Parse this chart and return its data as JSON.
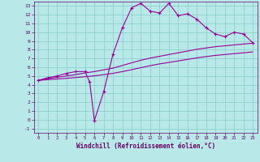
{
  "xlabel": "Windchill (Refroidissement éolien,°C)",
  "line_color": "#990099",
  "bg_color": "#b8e8e8",
  "grid_color": "#88cccc",
  "xlim": [
    -0.5,
    23.5
  ],
  "ylim": [
    -1.5,
    13.5
  ],
  "xticks": [
    0,
    1,
    2,
    3,
    4,
    5,
    6,
    7,
    8,
    9,
    10,
    11,
    12,
    13,
    14,
    15,
    16,
    17,
    18,
    19,
    20,
    21,
    22,
    23
  ],
  "yticks": [
    -1,
    0,
    1,
    2,
    3,
    4,
    5,
    6,
    7,
    8,
    9,
    10,
    11,
    12,
    13
  ],
  "temp_x": [
    0,
    1,
    2,
    3,
    4,
    5,
    5.5,
    6,
    7,
    8,
    9,
    10,
    11,
    12,
    13,
    14,
    15,
    16,
    17,
    18,
    19,
    20,
    21,
    22,
    23
  ],
  "temp_y": [
    4.5,
    4.8,
    5.0,
    5.3,
    5.5,
    5.5,
    4.3,
    -0.1,
    3.2,
    7.5,
    10.5,
    12.8,
    13.3,
    12.4,
    12.2,
    13.3,
    11.9,
    12.1,
    11.5,
    10.5,
    9.8,
    9.5,
    10.0,
    9.8,
    8.8
  ],
  "smooth1_x": [
    0,
    1,
    2,
    3,
    4,
    5,
    6,
    7,
    8,
    9,
    10,
    11,
    12,
    13,
    14,
    15,
    16,
    17,
    18,
    19,
    20,
    21,
    22,
    23
  ],
  "smooth1_y": [
    4.5,
    4.7,
    4.85,
    5.0,
    5.15,
    5.35,
    5.5,
    5.7,
    5.9,
    6.2,
    6.5,
    6.8,
    7.05,
    7.25,
    7.45,
    7.65,
    7.85,
    8.05,
    8.2,
    8.35,
    8.45,
    8.55,
    8.65,
    8.75
  ],
  "smooth2_x": [
    0,
    1,
    2,
    3,
    4,
    5,
    6,
    7,
    8,
    9,
    10,
    11,
    12,
    13,
    14,
    15,
    16,
    17,
    18,
    19,
    20,
    21,
    22,
    23
  ],
  "smooth2_y": [
    4.5,
    4.58,
    4.65,
    4.73,
    4.82,
    4.92,
    5.02,
    5.15,
    5.3,
    5.5,
    5.72,
    5.95,
    6.18,
    6.38,
    6.55,
    6.72,
    6.9,
    7.07,
    7.22,
    7.35,
    7.45,
    7.55,
    7.65,
    7.75
  ]
}
